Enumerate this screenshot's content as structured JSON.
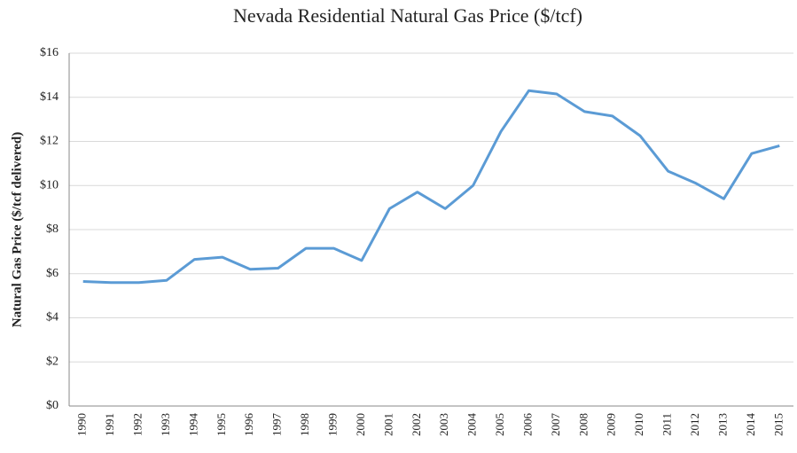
{
  "chart_data": {
    "type": "line",
    "title": "Nevada Residential Natural Gas Price ($/tcf)",
    "y_label": "Natural Gas Price ($/tcf delivered)",
    "categories": [
      "1990",
      "1991",
      "1992",
      "1993",
      "1994",
      "1995",
      "1996",
      "1997",
      "1998",
      "1999",
      "2000",
      "2001",
      "2002",
      "2003",
      "2004",
      "2005",
      "2006",
      "2007",
      "2008",
      "2009",
      "2010",
      "2011",
      "2012",
      "2013",
      "2014",
      "2015"
    ],
    "series": [
      {
        "color": "#5b9bd5",
        "values": [
          5.65,
          5.6,
          5.6,
          5.7,
          6.65,
          6.75,
          6.2,
          6.25,
          7.15,
          7.15,
          6.6,
          8.95,
          9.7,
          8.95,
          10.0,
          12.45,
          14.3,
          14.15,
          13.35,
          13.15,
          12.25,
          10.65,
          10.1,
          9.4,
          11.45,
          11.8
        ]
      }
    ],
    "ylim": [
      0,
      16
    ],
    "yticks": [
      {
        "value": 0,
        "label": "$0"
      },
      {
        "value": 2,
        "label": "$2"
      },
      {
        "value": 4,
        "label": "$4"
      },
      {
        "value": 6,
        "label": "$6"
      },
      {
        "value": 8,
        "label": "$8"
      },
      {
        "value": 10,
        "label": "$10"
      },
      {
        "value": 12,
        "label": "$12"
      },
      {
        "value": 14,
        "label": "$14"
      },
      {
        "value": 16,
        "label": "$16"
      }
    ],
    "grid": true
  }
}
